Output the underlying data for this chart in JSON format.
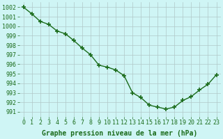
{
  "hours": [
    0,
    1,
    2,
    3,
    4,
    5,
    6,
    7,
    8,
    9,
    10,
    11,
    12,
    13,
    14,
    15,
    16,
    17,
    18,
    19,
    20,
    21,
    22,
    23
  ],
  "pressure": [
    1002.0,
    1001.3,
    1000.5,
    1000.2,
    999.5,
    999.2,
    998.5,
    997.7,
    997.0,
    995.9,
    995.7,
    995.4,
    994.8,
    993.0,
    992.5,
    991.7,
    991.5,
    991.3,
    991.5,
    992.2,
    992.6,
    993.3,
    993.9,
    994.9
  ],
  "line_color": "#1a6b1a",
  "marker": "+",
  "marker_size": 5,
  "marker_linewidth": 1.2,
  "bg_color": "#cff5f5",
  "grid_color": "#b0c8c8",
  "xlabel": "Graphe pression niveau de la mer (hPa)",
  "ylim": [
    990.5,
    1002.5
  ],
  "xlim": [
    -0.5,
    23.5
  ],
  "yticks": [
    991,
    992,
    993,
    994,
    995,
    996,
    997,
    998,
    999,
    1000,
    1001,
    1002
  ],
  "xticks": [
    0,
    1,
    2,
    3,
    4,
    5,
    6,
    7,
    8,
    9,
    10,
    11,
    12,
    13,
    14,
    15,
    16,
    17,
    18,
    19,
    20,
    21,
    22,
    23
  ],
  "xtick_labels": [
    "0",
    "1",
    "2",
    "3",
    "4",
    "5",
    "6",
    "7",
    "8",
    "9",
    "10",
    "11",
    "12",
    "13",
    "14",
    "15",
    "16",
    "17",
    "18",
    "19",
    "20",
    "21",
    "22",
    "23"
  ],
  "xlabel_fontsize": 7,
  "tick_fontsize": 6,
  "linewidth": 1.0
}
